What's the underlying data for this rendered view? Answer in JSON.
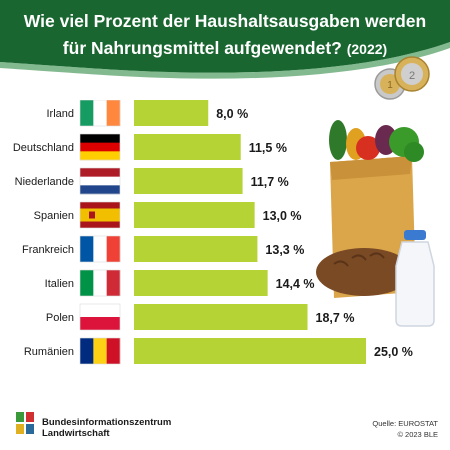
{
  "title": {
    "line1": "Wie viel Prozent der Haushaltsausgaben werden",
    "line2": "für Nahrungsmittel aufgewendet?",
    "year": "(2022)"
  },
  "chart_data": {
    "type": "bar",
    "orientation": "horizontal",
    "categories": [
      "Irland",
      "Deutschland",
      "Niederlande",
      "Spanien",
      "Frankreich",
      "Italien",
      "Polen",
      "Rumänien"
    ],
    "values": [
      8.0,
      11.5,
      11.7,
      13.0,
      13.3,
      14.4,
      18.7,
      25.0
    ],
    "value_labels": [
      "8,0 %",
      "11,5 %",
      "11,7 %",
      "13,0 %",
      "13,3 %",
      "14,4 %",
      "18,7 %",
      "25,0 %"
    ],
    "unit": "%",
    "xlim": [
      0,
      25
    ],
    "bar_color": "#b5d334",
    "grid": false,
    "flags": [
      "ireland-flag-icon",
      "germany-flag-icon",
      "netherlands-flag-icon",
      "spain-flag-icon",
      "france-flag-icon",
      "italy-flag-icon",
      "poland-flag-icon",
      "romania-flag-icon"
    ]
  },
  "footer": {
    "logo_line1": "Bundesinformationszentrum",
    "logo_line2": "Landwirtschaft",
    "source": "Quelle: EUROSTAT",
    "copyright": "© 2023 BLE"
  },
  "colors": {
    "header": "#1a6630",
    "bar": "#b5d334",
    "text": "#1a1a1a"
  }
}
